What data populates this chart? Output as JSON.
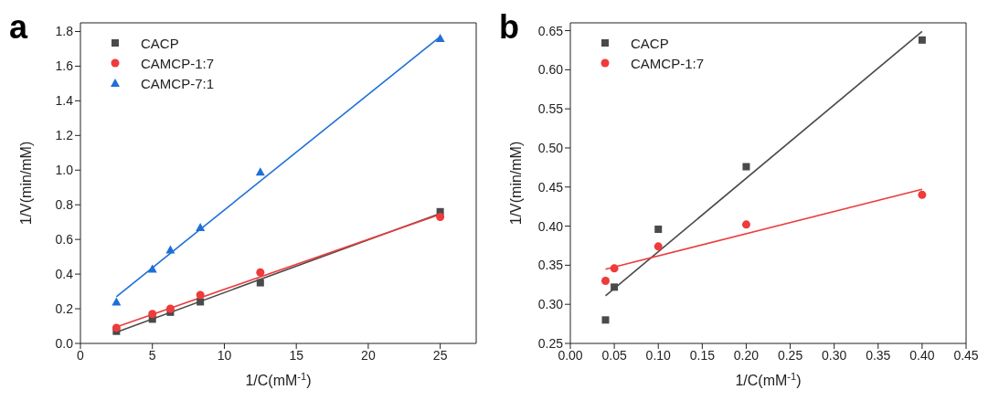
{
  "chart_data": [
    {
      "type": "scatter",
      "title": "a",
      "xlabel": "1/C(mM$^{-1}$)",
      "ylabel": "1/V(min/mM)",
      "xlim": [
        0,
        27.5
      ],
      "ylim": [
        0,
        1.85
      ],
      "xticks": [
        0,
        5,
        10,
        15,
        20,
        25
      ],
      "yticks": [
        {
          "value": 0,
          "label": "0.0"
        },
        {
          "value": 0.2,
          "label": "0.2"
        },
        {
          "value": 0.4,
          "label": "0.4"
        },
        {
          "value": 0.6,
          "label": "0.6"
        },
        {
          "value": 0.8,
          "label": "0.8"
        },
        {
          "value": 1,
          "label": "1.0"
        },
        {
          "value": 1.2,
          "label": "1.2"
        },
        {
          "value": 1.4,
          "label": "1.4"
        },
        {
          "value": 1.6,
          "label": "1.6"
        },
        {
          "value": 1.8,
          "label": "1.8"
        }
      ],
      "grid": false,
      "legend": "top left",
      "x": [
        2.5,
        5,
        6.25,
        8.33,
        12.5,
        25
      ],
      "series": [
        {
          "name": "CACP",
          "color": "#4a4a4a",
          "marker": "square",
          "values": [
            0.07,
            0.14,
            0.18,
            0.24,
            0.35,
            0.76
          ]
        },
        {
          "name": "CAMCP-1:7",
          "color": "#ee3b3b",
          "marker": "circle",
          "values": [
            0.09,
            0.17,
            0.2,
            0.28,
            0.41,
            0.73
          ]
        },
        {
          "name": "CAMCP-7:1",
          "color": "#1f6fd6",
          "marker": "triangle",
          "values": [
            0.24,
            0.43,
            0.54,
            0.67,
            0.99,
            1.76
          ]
        },
        {
          "type": "line",
          "color": "#4a4a4a",
          "marker": "none",
          "x": [
            2.5,
            25
          ],
          "values": [
            0.065,
            0.75
          ]
        },
        {
          "type": "line",
          "color": "#ee3b3b",
          "marker": "none",
          "x": [
            2.5,
            25
          ],
          "values": [
            0.095,
            0.745
          ]
        },
        {
          "type": "line",
          "color": "#1f6fd6",
          "marker": "none",
          "x": [
            2.5,
            25
          ],
          "values": [
            0.27,
            1.77
          ]
        }
      ]
    },
    {
      "type": "scatter",
      "title": "b",
      "xlabel": "1/C(mM$^{-1}$)",
      "ylabel": "1/V(min/mM)",
      "xlim": [
        0,
        0.45
      ],
      "ylim": [
        0.25,
        0.66
      ],
      "xticks": [
        {
          "value": 0,
          "label": "0.00"
        },
        {
          "value": 0.05,
          "label": "0.05"
        },
        {
          "value": 0.1,
          "label": "0.10"
        },
        {
          "value": 0.15,
          "label": "0.15"
        },
        {
          "value": 0.2,
          "label": "0.20"
        },
        {
          "value": 0.25,
          "label": "0.25"
        },
        {
          "value": 0.3,
          "label": "0.30"
        },
        {
          "value": 0.35,
          "label": "0.35"
        },
        {
          "value": 0.4,
          "label": "0.40"
        },
        {
          "value": 0.45,
          "label": "0.45"
        }
      ],
      "yticks": [
        {
          "value": 0.25,
          "label": "0.25"
        },
        {
          "value": 0.3,
          "label": "0.30"
        },
        {
          "value": 0.35,
          "label": "0.35"
        },
        {
          "value": 0.4,
          "label": "0.40"
        },
        {
          "value": 0.45,
          "label": "0.45"
        },
        {
          "value": 0.5,
          "label": "0.50"
        },
        {
          "value": 0.55,
          "label": "0.55"
        },
        {
          "value": 0.6,
          "label": "0.60"
        },
        {
          "value": 0.65,
          "label": "0.65"
        }
      ],
      "grid": false,
      "legend": "top left",
      "x": [
        0.04,
        0.05,
        0.1,
        0.2,
        0.4
      ],
      "series": [
        {
          "name": "CACP",
          "color": "#4a4a4a",
          "marker": "square",
          "values": [
            0.28,
            0.322,
            0.396,
            0.476,
            0.638
          ]
        },
        {
          "name": "CAMCP-1:7",
          "color": "#ee3b3b",
          "marker": "circle",
          "values": [
            0.33,
            0.346,
            0.374,
            0.402,
            0.44
          ]
        },
        {
          "type": "line",
          "color": "#4a4a4a",
          "marker": "none",
          "x": [
            0.04,
            0.4
          ],
          "values": [
            0.311,
            0.649
          ]
        },
        {
          "type": "line",
          "color": "#ee3b3b",
          "marker": "none",
          "x": [
            0.04,
            0.4
          ],
          "values": [
            0.345,
            0.447
          ]
        }
      ]
    }
  ]
}
